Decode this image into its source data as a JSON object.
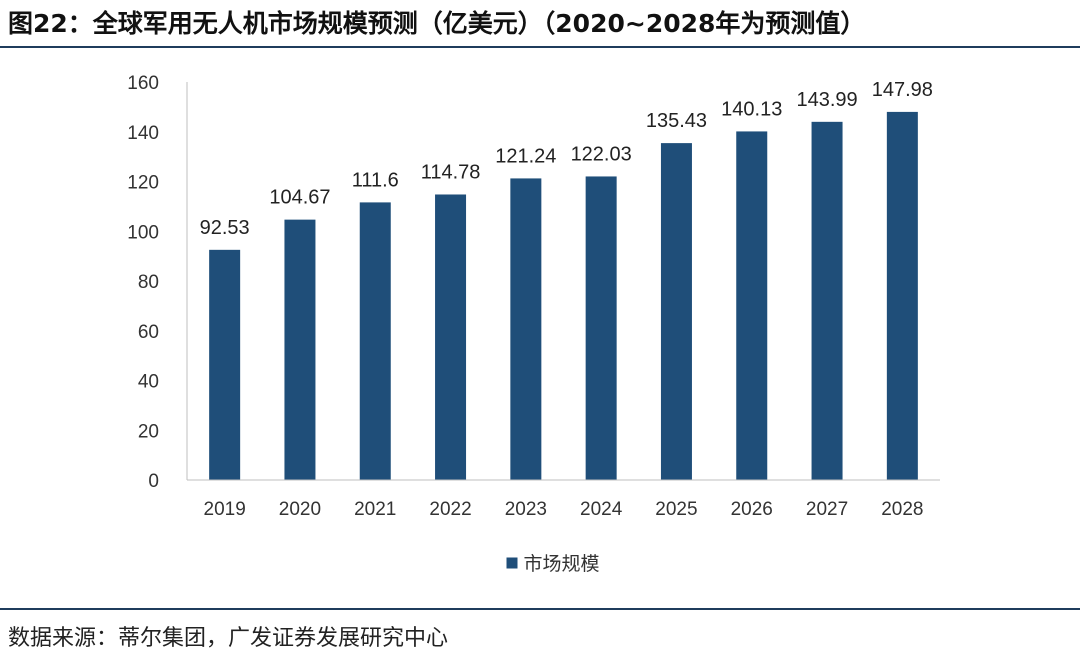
{
  "header": {
    "title": "图22：全球军用无人机市场规模预测（亿美元）（2020~2028年为预测值）"
  },
  "chart_data": {
    "type": "bar",
    "title": "图22：全球军用无人机市场规模预测（亿美元）（2020~2028年为预测值）",
    "categories": [
      "2019",
      "2020",
      "2021",
      "2022",
      "2023",
      "2024",
      "2025",
      "2026",
      "2027",
      "2028"
    ],
    "series": [
      {
        "name": "市场规模",
        "values": [
          92.53,
          104.67,
          111.6,
          114.78,
          121.24,
          122.03,
          135.43,
          140.13,
          143.99,
          147.98
        ],
        "labels": [
          "92.53",
          "104.67",
          "111.6",
          "114.78",
          "121.24",
          "122.03",
          "135.43",
          "140.13",
          "143.99",
          "147.98"
        ],
        "color": "#1f4e79"
      }
    ],
    "yticks": [
      "0",
      "20",
      "40",
      "60",
      "80",
      "100",
      "120",
      "140",
      "160"
    ],
    "ylim": [
      0,
      160
    ],
    "xlabel": "",
    "ylabel": "",
    "grid": false,
    "legend_position": "bottom-center"
  },
  "footer": {
    "source": "数据来源：蒂尔集团，广发证券发展研究中心"
  }
}
